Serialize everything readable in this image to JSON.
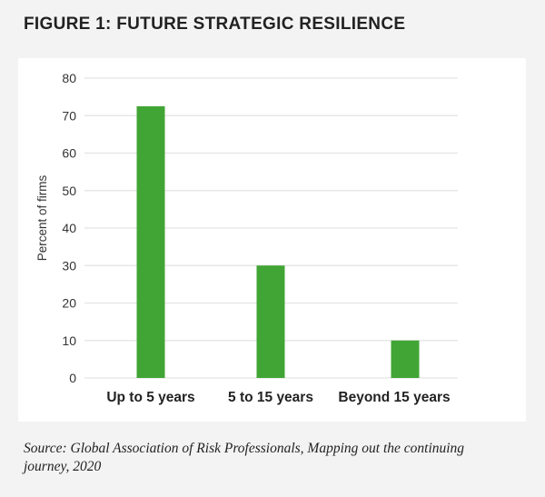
{
  "title": "FIGURE 1: FUTURE STRATEGIC RESILIENCE",
  "source": "Source: Global Association of Risk Professionals, Mapping out the continuing journey, 2020",
  "chart_data": {
    "type": "bar",
    "title": "FIGURE 1: FUTURE STRATEGIC RESILIENCE",
    "categories": [
      "Up to 5 years",
      "5 to 15 years",
      "Beyond 15 years"
    ],
    "values": [
      72.5,
      30,
      10
    ],
    "xlabel": "",
    "ylabel": "Percent of firms",
    "ylim": [
      0,
      80
    ],
    "yticks": [
      0,
      10,
      20,
      30,
      40,
      50,
      60,
      70,
      80
    ],
    "grid": true,
    "bar_color": "#41a535",
    "grid_color": "#e3e3e3"
  }
}
